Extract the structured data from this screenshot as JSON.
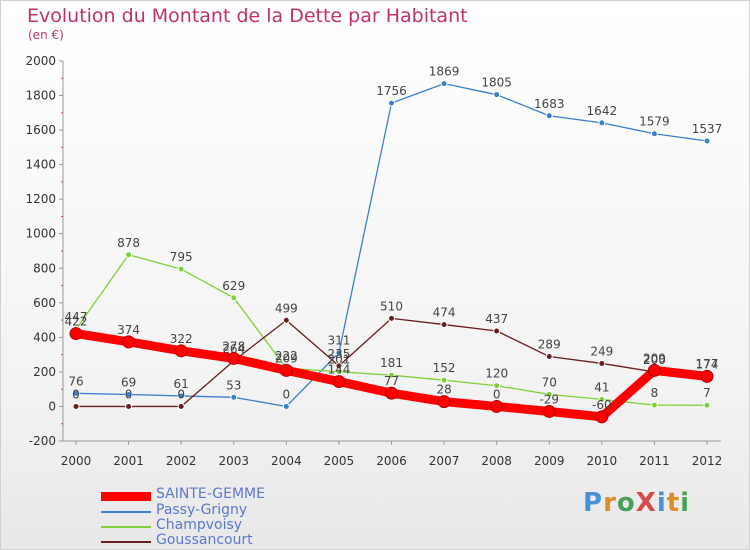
{
  "title": "Evolution du Montant de la Dette par Habitant",
  "subtitle": "(en €)",
  "logo": "ProXiti",
  "chart_data": {
    "type": "line",
    "categories": [
      "2000",
      "2001",
      "2002",
      "2003",
      "2004",
      "2005",
      "2006",
      "2007",
      "2008",
      "2009",
      "2010",
      "2011",
      "2012"
    ],
    "ylim": [
      -200,
      2000
    ],
    "yticks": [
      -200,
      0,
      200,
      400,
      600,
      800,
      1000,
      1200,
      1400,
      1600,
      1800,
      2000
    ],
    "grid": false,
    "legend_position": "bottom-left",
    "series": [
      {
        "name": "SAINTE-GEMME",
        "color": "#ff0000",
        "values": [
          422,
          374,
          322,
          278,
          209,
          144,
          77,
          28,
          0,
          -29,
          -60,
          209,
          174
        ]
      },
      {
        "name": "Passy-Grigny",
        "color": "#3a7fc9",
        "values": [
          76,
          69,
          61,
          53,
          0,
          311,
          1756,
          1869,
          1805,
          1683,
          1642,
          1579,
          1537
        ]
      },
      {
        "name": "Champvoisy",
        "color": "#7ed03a",
        "values": [
          447,
          878,
          795,
          629,
          222,
          201,
          181,
          152,
          120,
          70,
          41,
          8,
          7
        ]
      },
      {
        "name": "Goussancourt",
        "color": "#6b1c1c",
        "values": [
          0,
          0,
          0,
          264,
          499,
          235,
          510,
          474,
          437,
          289,
          249,
          200,
          177
        ]
      }
    ]
  },
  "colors": {
    "title": "#c0316a",
    "legend_text": "#5a78d0"
  }
}
